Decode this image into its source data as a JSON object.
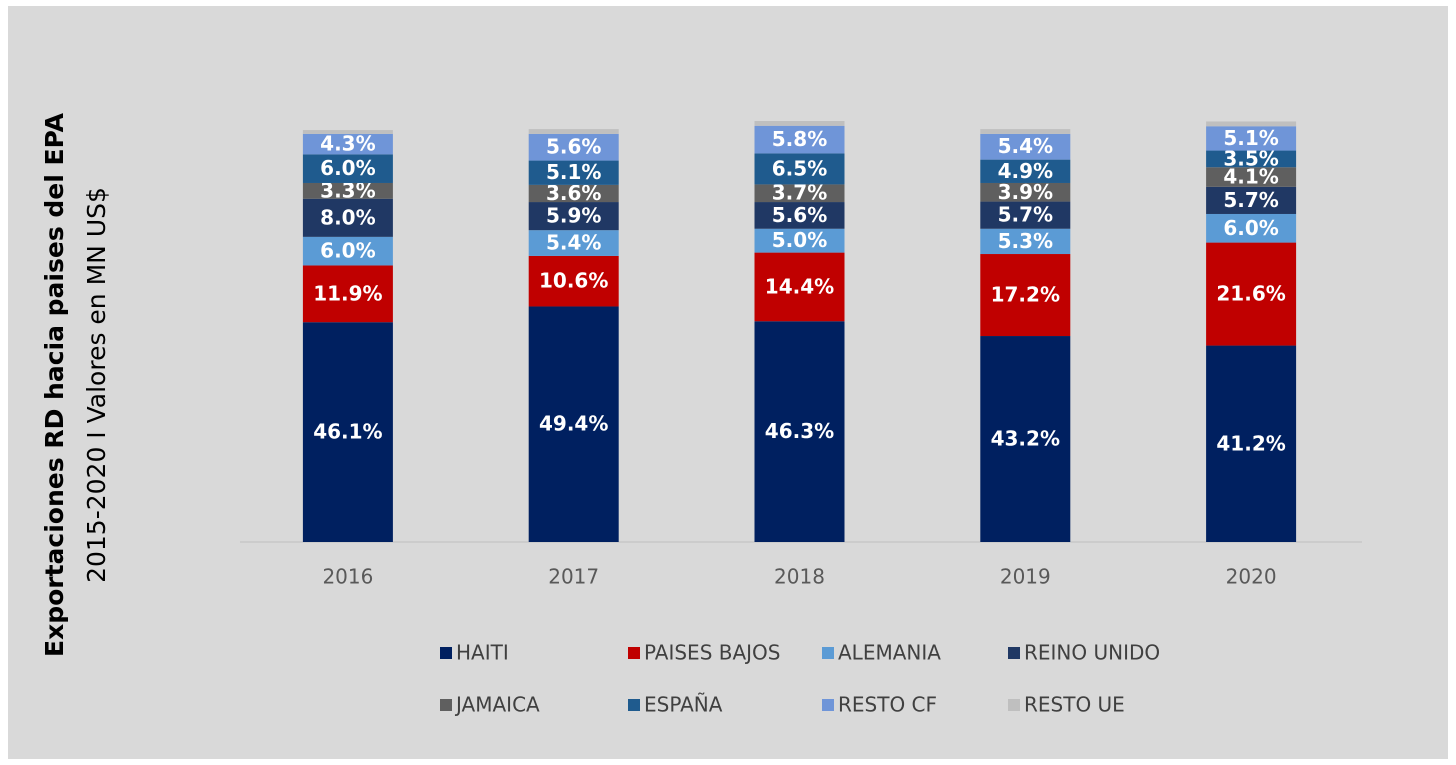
{
  "chart_data": {
    "type": "bar",
    "stacked": true,
    "title": "Exportaciones RD hacia paises del EPA",
    "subtitle": "2015-2020 I Valores en MN US$",
    "categories": [
      "2016",
      "2017",
      "2018",
      "2019",
      "2020"
    ],
    "series": [
      {
        "name": "HAITI",
        "color": "#002060",
        "values": [
          46.1,
          49.4,
          46.3,
          43.2,
          41.2
        ],
        "value_labels": [
          "46.1%",
          "49.4%",
          "46.3%",
          "43.2%",
          "41.2%"
        ]
      },
      {
        "name": "PAISES BAJOS",
        "color": "#c00000",
        "values": [
          11.9,
          10.6,
          14.4,
          17.2,
          21.6
        ],
        "value_labels": [
          "11.9%",
          "10.6%",
          "14.4%",
          "17.2%",
          "21.6%"
        ]
      },
      {
        "name": "ALEMANIA",
        "color": "#5b9bd5",
        "values": [
          6.0,
          5.4,
          5.0,
          5.3,
          6.0
        ],
        "value_labels": [
          "6.0%",
          "5.4%",
          "5.0%",
          "5.3%",
          "6.0%"
        ]
      },
      {
        "name": "REINO UNIDO",
        "color": "#203864",
        "values": [
          8.0,
          5.9,
          5.6,
          5.7,
          5.7
        ],
        "value_labels": [
          "8.0%",
          "5.9%",
          "5.6%",
          "5.7%",
          "5.7%"
        ]
      },
      {
        "name": "JAMAICA",
        "color": "#5f5f5f",
        "values": [
          3.3,
          3.6,
          3.7,
          3.9,
          4.1
        ],
        "value_labels": [
          "3.3%",
          "3.6%",
          "3.7%",
          "3.9%",
          "4.1%"
        ]
      },
      {
        "name": "ESPAÑA",
        "color": "#1f5b8e",
        "values": [
          6.0,
          5.1,
          6.5,
          4.9,
          3.5
        ],
        "value_labels": [
          "6.0%",
          "5.1%",
          "6.5%",
          "4.9%",
          "3.5%"
        ]
      },
      {
        "name": "RESTO CF",
        "color": "#6f95d8",
        "values": [
          4.3,
          5.6,
          5.8,
          5.4,
          5.1
        ],
        "value_labels": [
          "4.3%",
          "5.6%",
          "5.8%",
          "5.4%",
          "5.1%"
        ]
      },
      {
        "name": "RESTO UE",
        "color": "#bfbfbf",
        "values": [
          0.8,
          1.0,
          1.0,
          1.0,
          1.0
        ]
      }
    ]
  }
}
